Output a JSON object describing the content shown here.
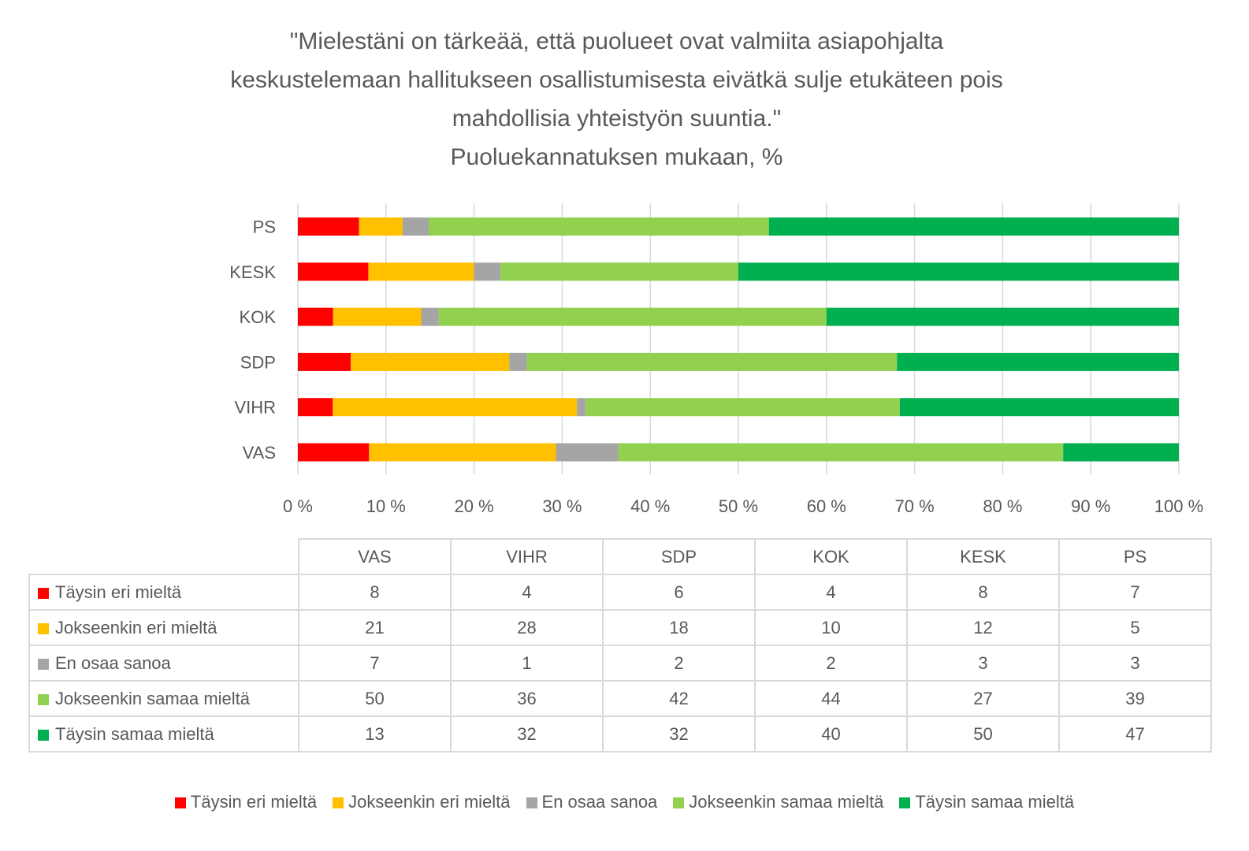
{
  "title_lines": [
    "\"Mielestäni on tärkeää, että puolueet ovat valmiita asiapohjalta",
    "keskustelemaan hallitukseen osallistumisesta eivätkä sulje etukäteen pois",
    "mahdollisia yhteistyön suuntia.\"",
    "Puoluekannatuksen mukaan, %"
  ],
  "chart_data": {
    "type": "bar",
    "orientation": "horizontal",
    "stacked": "percent",
    "title": "\"Mielestäni on tärkeää, että puolueet ovat valmiita asiapohjalta keskustelemaan hallitukseen osallistumisesta eivätkä sulje etukäteen pois mahdollisia yhteistyön suuntia.\" Puoluekannatuksen mukaan, %",
    "categories": [
      "VAS",
      "VIHR",
      "SDP",
      "KOK",
      "KESK",
      "PS"
    ],
    "series": [
      {
        "name": "Täysin eri mieltä",
        "color": "#ff0000",
        "values": [
          8,
          4,
          6,
          4,
          8,
          7
        ]
      },
      {
        "name": "Jokseenkin eri mieltä",
        "color": "#ffc000",
        "values": [
          21,
          28,
          18,
          10,
          12,
          5
        ]
      },
      {
        "name": "En osaa sanoa",
        "color": "#a5a5a5",
        "values": [
          7,
          1,
          2,
          2,
          3,
          3
        ]
      },
      {
        "name": "Jokseenkin samaa mieltä",
        "color": "#92d050",
        "values": [
          50,
          36,
          42,
          44,
          27,
          39
        ]
      },
      {
        "name": "Täysin samaa mieltä",
        "color": "#00b050",
        "values": [
          13,
          32,
          32,
          40,
          50,
          47
        ]
      }
    ],
    "xlabel": "",
    "ylabel": "",
    "xlim": [
      0,
      100
    ],
    "x_ticks": [
      "0 %",
      "10 %",
      "20 %",
      "30 %",
      "40 %",
      "50 %",
      "60 %",
      "70 %",
      "80 %",
      "90 %",
      "100 %"
    ],
    "grid": true,
    "legend": "bottom",
    "data_table": true
  },
  "table": {
    "columns": [
      "VAS",
      "VIHR",
      "SDP",
      "KOK",
      "KESK",
      "PS"
    ]
  }
}
